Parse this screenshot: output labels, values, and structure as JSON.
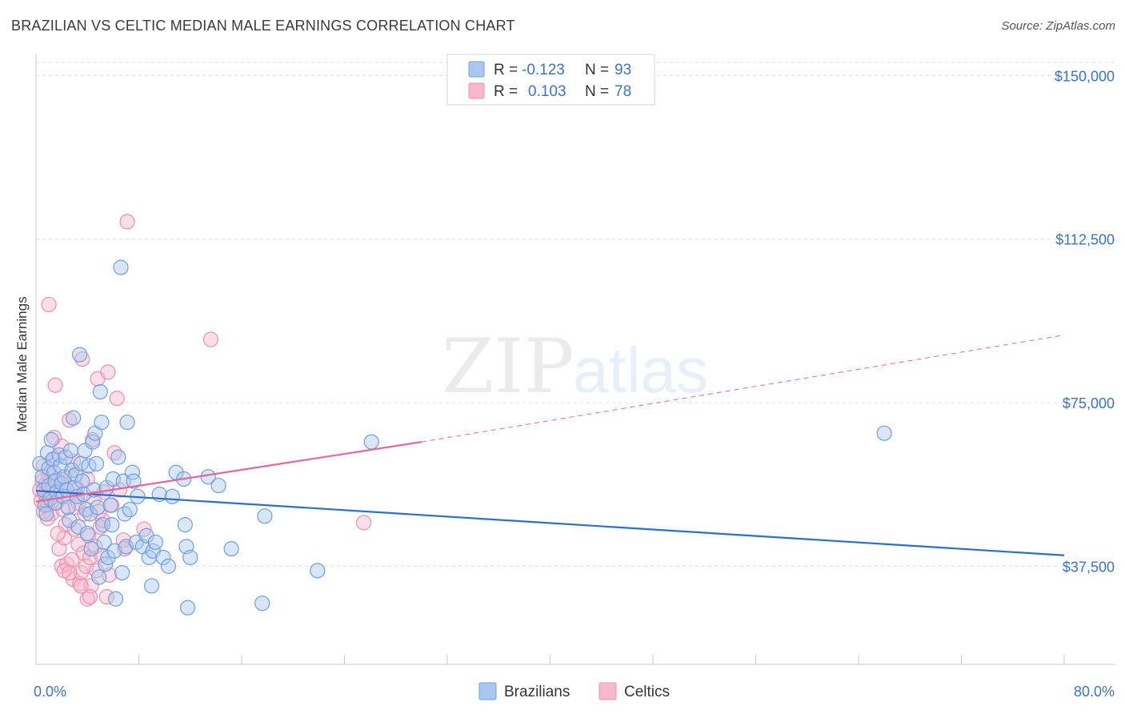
{
  "title": "BRAZILIAN VS CELTIC MEDIAN MALE EARNINGS CORRELATION CHART",
  "source": "Source: ZipAtlas.com",
  "watermark": {
    "zip": "ZIP",
    "atlas": "atlas"
  },
  "colors": {
    "brazilians_fill": "#a9c8f0",
    "brazilians_stroke": "#6f9fdc",
    "brazilians_line": "#2a6fd0",
    "celtics_fill": "#f6b8cb",
    "celtics_stroke": "#ec8fae",
    "celtics_line": "#e8679a",
    "tick_label": "#3a74c9",
    "grid": "#dddddd"
  },
  "stats_legend": {
    "rows": [
      {
        "r_label": "R =",
        "r_value": "-0.123",
        "n_label": "N =",
        "n_value": "93"
      },
      {
        "r_label": "R =",
        "r_value": "0.103",
        "n_label": "N =",
        "n_value": "78"
      }
    ]
  },
  "chart_data": {
    "type": "scatter",
    "title": "BRAZILIAN VS CELTIC MEDIAN MALE EARNINGS CORRELATION CHART",
    "xlabel": "",
    "ylabel": "Median Male Earnings",
    "xlim": [
      0,
      80
    ],
    "ylim": [
      15000,
      153000
    ],
    "x_tick_labels": [
      "0.0%",
      "80.0%"
    ],
    "y_ticks": [
      37500,
      75000,
      112500,
      150000
    ],
    "y_tick_labels": [
      "$37,500",
      "$75,000",
      "$112,500",
      "$150,000"
    ],
    "grid": true,
    "legend_position": "bottom-center",
    "series": [
      {
        "name": "Brazilians",
        "r": -0.123,
        "n": 93,
        "trend": {
          "x0": 0,
          "y0": 54800,
          "x1": 80,
          "y1": 40000
        },
        "points": [
          [
            0.3,
            61000
          ],
          [
            0.5,
            58000
          ],
          [
            0.6,
            55000
          ],
          [
            0.7,
            51500
          ],
          [
            0.8,
            49500
          ],
          [
            0.9,
            63500
          ],
          [
            1.0,
            60000
          ],
          [
            1.0,
            56000
          ],
          [
            1.1,
            53000
          ],
          [
            1.2,
            66500
          ],
          [
            1.3,
            62000
          ],
          [
            1.4,
            59000
          ],
          [
            1.5,
            57000
          ],
          [
            1.5,
            52000
          ],
          [
            1.6,
            54500
          ],
          [
            1.8,
            63000
          ],
          [
            1.9,
            60500
          ],
          [
            2.0,
            56500
          ],
          [
            2.1,
            53500
          ],
          [
            2.2,
            58000
          ],
          [
            2.3,
            62500
          ],
          [
            2.4,
            55000
          ],
          [
            2.5,
            51000
          ],
          [
            2.6,
            48000
          ],
          [
            2.7,
            64000
          ],
          [
            2.8,
            59500
          ],
          [
            2.9,
            71500
          ],
          [
            3.0,
            55500
          ],
          [
            3.1,
            58500
          ],
          [
            3.2,
            53500
          ],
          [
            3.3,
            46500
          ],
          [
            3.4,
            86000
          ],
          [
            3.5,
            61000
          ],
          [
            3.6,
            57000
          ],
          [
            3.7,
            54000
          ],
          [
            3.8,
            64000
          ],
          [
            3.9,
            50500
          ],
          [
            4.0,
            45000
          ],
          [
            4.1,
            60500
          ],
          [
            4.2,
            49500
          ],
          [
            4.3,
            41500
          ],
          [
            4.4,
            66000
          ],
          [
            4.5,
            55000
          ],
          [
            4.6,
            68000
          ],
          [
            4.7,
            61000
          ],
          [
            4.8,
            51000
          ],
          [
            4.9,
            35000
          ],
          [
            5.0,
            77500
          ],
          [
            5.1,
            70500
          ],
          [
            5.2,
            47000
          ],
          [
            5.3,
            43000
          ],
          [
            5.4,
            38000
          ],
          [
            5.5,
            55500
          ],
          [
            5.6,
            39500
          ],
          [
            5.8,
            51500
          ],
          [
            5.9,
            47000
          ],
          [
            6.0,
            57500
          ],
          [
            6.1,
            41000
          ],
          [
            6.2,
            30000
          ],
          [
            6.4,
            62500
          ],
          [
            6.6,
            106000
          ],
          [
            6.7,
            36000
          ],
          [
            6.8,
            57000
          ],
          [
            6.9,
            49500
          ],
          [
            7.0,
            42000
          ],
          [
            7.1,
            70500
          ],
          [
            7.3,
            50500
          ],
          [
            7.5,
            59000
          ],
          [
            7.6,
            57000
          ],
          [
            7.8,
            43000
          ],
          [
            7.9,
            53500
          ],
          [
            8.3,
            42000
          ],
          [
            8.6,
            44500
          ],
          [
            8.8,
            39500
          ],
          [
            9.0,
            33000
          ],
          [
            9.1,
            41000
          ],
          [
            9.3,
            43000
          ],
          [
            9.6,
            54000
          ],
          [
            9.9,
            39500
          ],
          [
            10.3,
            37500
          ],
          [
            10.6,
            53500
          ],
          [
            10.9,
            59000
          ],
          [
            11.5,
            57500
          ],
          [
            11.6,
            47000
          ],
          [
            11.7,
            42000
          ],
          [
            11.8,
            28000
          ],
          [
            12.0,
            39500
          ],
          [
            13.4,
            58000
          ],
          [
            14.2,
            56000
          ],
          [
            15.2,
            41500
          ],
          [
            17.6,
            29000
          ],
          [
            17.8,
            49000
          ],
          [
            21.9,
            36500
          ],
          [
            26.1,
            66000
          ],
          [
            66.0,
            68000
          ]
        ]
      },
      {
        "name": "Celtics",
        "r": 0.103,
        "n": 78,
        "trend": {
          "x0": 0,
          "y0": 52300,
          "x1": 30,
          "y1": 66000
        },
        "trend_dashed": {
          "x0": 30,
          "y0": 66000,
          "x1": 80,
          "y1": 90500
        },
        "points": [
          [
            0.3,
            55000
          ],
          [
            0.4,
            52500
          ],
          [
            0.5,
            57000
          ],
          [
            0.6,
            50000
          ],
          [
            0.7,
            54000
          ],
          [
            0.8,
            56500
          ],
          [
            0.9,
            51500
          ],
          [
            1.0,
            58500
          ],
          [
            1.1,
            53000
          ],
          [
            1.2,
            49500
          ],
          [
            1.3,
            55500
          ],
          [
            1.4,
            62000
          ],
          [
            1.5,
            79000
          ],
          [
            1.6,
            52000
          ],
          [
            1.7,
            57000
          ],
          [
            1.8,
            41500
          ],
          [
            1.9,
            54500
          ],
          [
            2.0,
            37500
          ],
          [
            2.1,
            50500
          ],
          [
            2.2,
            44000
          ],
          [
            2.3,
            47000
          ],
          [
            2.4,
            38000
          ],
          [
            2.5,
            53500
          ],
          [
            2.6,
            71000
          ],
          [
            2.7,
            58000
          ],
          [
            2.8,
            39000
          ],
          [
            2.9,
            34500
          ],
          [
            3.0,
            46000
          ],
          [
            3.1,
            51000
          ],
          [
            3.2,
            55000
          ],
          [
            3.3,
            42500
          ],
          [
            3.4,
            33500
          ],
          [
            3.5,
            36000
          ],
          [
            3.6,
            85000
          ],
          [
            3.7,
            40500
          ],
          [
            3.8,
            49500
          ],
          [
            3.9,
            37500
          ],
          [
            4.0,
            30000
          ],
          [
            4.1,
            44500
          ],
          [
            4.2,
            39500
          ],
          [
            4.3,
            33000
          ],
          [
            4.4,
            66500
          ],
          [
            4.5,
            53000
          ],
          [
            4.6,
            42000
          ],
          [
            4.7,
            36500
          ],
          [
            4.8,
            80500
          ],
          [
            4.9,
            50000
          ],
          [
            5.0,
            46500
          ],
          [
            5.1,
            40000
          ],
          [
            5.3,
            54500
          ],
          [
            5.5,
            30500
          ],
          [
            5.6,
            82000
          ],
          [
            5.7,
            35500
          ],
          [
            5.9,
            51500
          ],
          [
            6.1,
            63500
          ],
          [
            6.3,
            76000
          ],
          [
            6.5,
            55000
          ],
          [
            6.8,
            43500
          ],
          [
            6.9,
            41500
          ],
          [
            7.1,
            116500
          ],
          [
            8.4,
            46000
          ],
          [
            13.6,
            89500
          ],
          [
            25.5,
            47500
          ],
          [
            1.0,
            97500
          ],
          [
            2.2,
            36500
          ],
          [
            3.5,
            33000
          ],
          [
            4.2,
            30500
          ],
          [
            0.6,
            60500
          ],
          [
            0.9,
            48500
          ],
          [
            1.4,
            67000
          ],
          [
            2.0,
            65000
          ],
          [
            2.9,
            61500
          ],
          [
            3.3,
            52000
          ],
          [
            1.7,
            45000
          ],
          [
            2.6,
            36000
          ],
          [
            4.0,
            57500
          ],
          [
            5.2,
            48000
          ],
          [
            0.8,
            52500
          ]
        ]
      }
    ]
  },
  "series_legend": {
    "items": [
      {
        "label": "Brazilians"
      },
      {
        "label": "Celtics"
      }
    ]
  }
}
